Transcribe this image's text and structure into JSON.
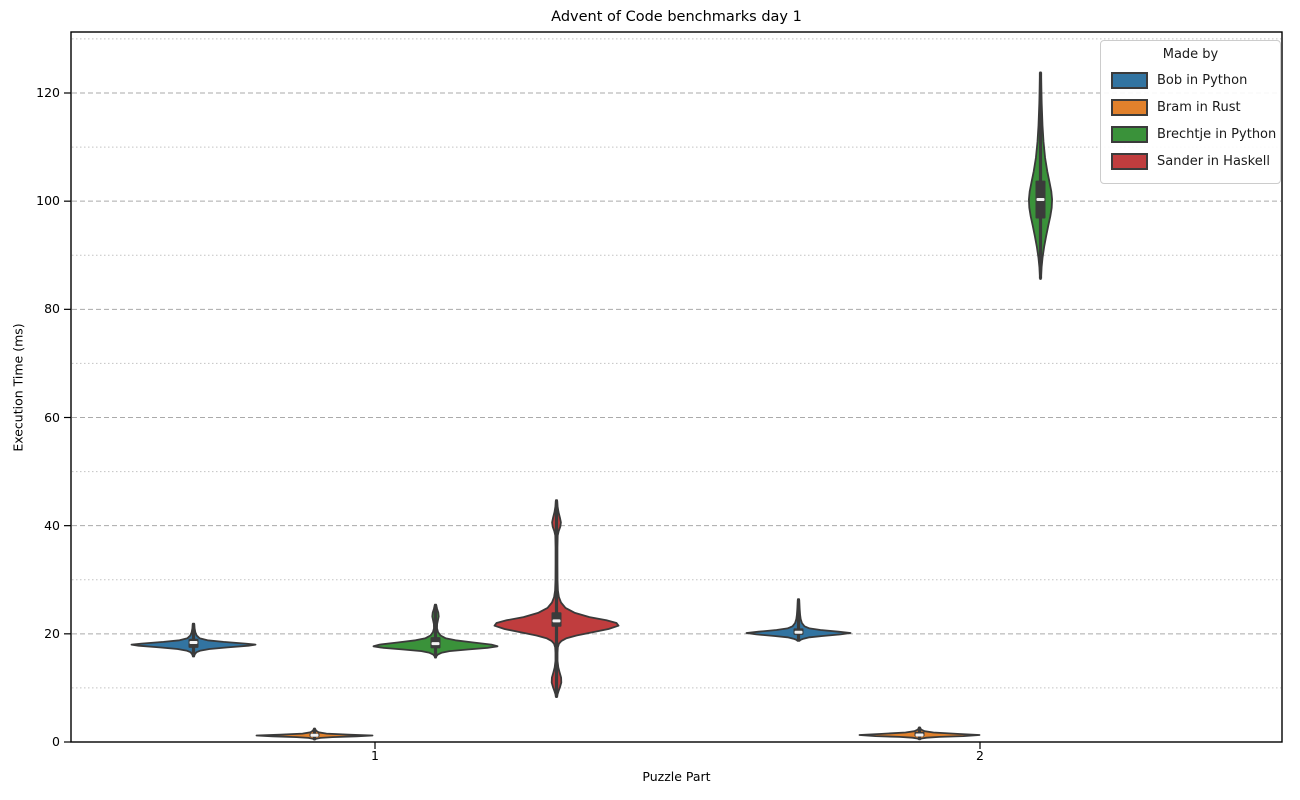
{
  "title": "Advent of Code benchmarks day 1",
  "x_axis": {
    "label": "Puzzle Part",
    "ticks": [
      "1",
      "2"
    ]
  },
  "y_axis": {
    "label": "Execution Time (ms)",
    "ticks": [
      0,
      20,
      40,
      60,
      80,
      100,
      120
    ],
    "minor_gridlines": [
      10,
      30,
      50,
      70,
      90,
      110,
      130
    ]
  },
  "legend": {
    "title": "Made by",
    "entries": [
      {
        "label": "Bob in Python",
        "color": "#3274a1"
      },
      {
        "label": "Bram in Rust",
        "color": "#e1812c"
      },
      {
        "label": "Brechtje in Python",
        "color": "#3a923a"
      },
      {
        "label": "Sander in Haskell",
        "color": "#c03d3e"
      }
    ]
  },
  "style_colors": {
    "violin_edge": "#3a3a3a",
    "inner_box": "#3b3b3b",
    "median_mark": "#f2f2f2",
    "grid_major": "#aaaaaa",
    "grid_minor": "#c3c3c3",
    "spine": "#000000"
  },
  "chart_data": {
    "type": "violin",
    "title": "Advent of Code benchmarks day 1",
    "xlabel": "Puzzle Part",
    "ylabel": "Execution Time (ms)",
    "ylim": [
      0,
      131
    ],
    "categories": [
      "1",
      "2"
    ],
    "hue_title": "Made by",
    "series_order": [
      "Bob in Python",
      "Bram in Rust",
      "Brechtje in Python",
      "Sander in Haskell"
    ],
    "summary": [
      {
        "maker": "Bob in Python",
        "part": "1",
        "median_ms": 18.4
      },
      {
        "maker": "Bram in Rust",
        "part": "1",
        "median_ms": 1.25
      },
      {
        "maker": "Brechtje in Python",
        "part": "1",
        "median_ms": 18.2
      },
      {
        "maker": "Sander in Haskell",
        "part": "1",
        "median_ms": 22.4
      },
      {
        "maker": "Bob in Python",
        "part": "2",
        "median_ms": 20.3
      },
      {
        "maker": "Bram in Rust",
        "part": "2",
        "median_ms": 1.3
      },
      {
        "maker": "Brechtje in Python",
        "part": "2",
        "median_ms": 100.3
      }
    ],
    "violins": [
      {
        "maker": "Bob in Python",
        "part": 1,
        "maker_index": 0,
        "color": "#3274a1",
        "stats": {
          "min": 16.2,
          "q1": 17.4,
          "median": 18.4,
          "q3": 19.1,
          "max": 21.8
        },
        "profile": [
          [
            21.9,
            0.7
          ],
          [
            21.0,
            1.1
          ],
          [
            20.3,
            1.8
          ],
          [
            19.7,
            3.2
          ],
          [
            19.2,
            6
          ],
          [
            18.8,
            14
          ],
          [
            18.5,
            30
          ],
          [
            18.2,
            52
          ],
          [
            18.0,
            62
          ],
          [
            17.8,
            55
          ],
          [
            17.5,
            34
          ],
          [
            17.2,
            16
          ],
          [
            16.9,
            7
          ],
          [
            16.6,
            3
          ],
          [
            16.2,
            1.2
          ],
          [
            15.8,
            0.6
          ]
        ]
      },
      {
        "maker": "Bram in Rust",
        "part": 1,
        "maker_index": 1,
        "color": "#e1812c",
        "stats": {
          "min": 0.5,
          "q1": 0.95,
          "median": 1.25,
          "q3": 1.6,
          "max": 2.4
        },
        "profile": [
          [
            2.5,
            0.5
          ],
          [
            2.1,
            1.5
          ],
          [
            1.8,
            4
          ],
          [
            1.55,
            12
          ],
          [
            1.35,
            34
          ],
          [
            1.2,
            58
          ],
          [
            1.05,
            42
          ],
          [
            0.9,
            18
          ],
          [
            0.75,
            6
          ],
          [
            0.6,
            1.5
          ],
          [
            0.45,
            0.5
          ]
        ]
      },
      {
        "maker": "Brechtje in Python",
        "part": 1,
        "maker_index": 2,
        "color": "#3a923a",
        "stats": {
          "min": 15.8,
          "q1": 17.3,
          "median": 18.2,
          "q3": 19.4,
          "max": 25.3
        },
        "profile": [
          [
            25.4,
            0.6
          ],
          [
            24.6,
            1.6
          ],
          [
            23.9,
            2.8
          ],
          [
            23.2,
            3.2
          ],
          [
            22.5,
            2.4
          ],
          [
            21.8,
            1.6
          ],
          [
            21.0,
            1.5
          ],
          [
            20.3,
            2.6
          ],
          [
            19.7,
            5
          ],
          [
            19.2,
            10
          ],
          [
            18.8,
            20
          ],
          [
            18.4,
            38
          ],
          [
            18.0,
            56
          ],
          [
            17.7,
            62
          ],
          [
            17.4,
            52
          ],
          [
            17.1,
            32
          ],
          [
            16.8,
            14
          ],
          [
            16.5,
            6
          ],
          [
            16.2,
            2.5
          ],
          [
            15.9,
            1.0
          ],
          [
            15.6,
            0.5
          ]
        ]
      },
      {
        "maker": "Sander in Haskell",
        "part": 1,
        "maker_index": 3,
        "color": "#c03d3e",
        "stats": {
          "min": 8.3,
          "q1": 21.3,
          "median": 22.4,
          "q3": 24.0,
          "max": 44.6
        },
        "profile": [
          [
            44.7,
            0.6
          ],
          [
            43.5,
            1.1
          ],
          [
            42.5,
            2.0
          ],
          [
            41.5,
            3.4
          ],
          [
            40.6,
            4.4
          ],
          [
            39.8,
            3.8
          ],
          [
            39.0,
            2.2
          ],
          [
            38.2,
            1.2
          ],
          [
            36.0,
            0.9
          ],
          [
            33.0,
            0.9
          ],
          [
            30.0,
            1.0
          ],
          [
            28.0,
            1.4
          ],
          [
            26.8,
            2.4
          ],
          [
            25.8,
            4.5
          ],
          [
            24.8,
            9
          ],
          [
            23.9,
            18
          ],
          [
            23.1,
            33
          ],
          [
            22.5,
            50
          ],
          [
            22.0,
            60
          ],
          [
            21.5,
            62
          ],
          [
            20.9,
            52
          ],
          [
            20.3,
            36
          ],
          [
            19.7,
            20
          ],
          [
            19.2,
            10
          ],
          [
            18.7,
            5
          ],
          [
            18.2,
            2.5
          ],
          [
            17.5,
            1.3
          ],
          [
            16.5,
            1.0
          ],
          [
            15.0,
            1.0
          ],
          [
            13.8,
            1.8
          ],
          [
            12.8,
            3.2
          ],
          [
            11.9,
            4.6
          ],
          [
            11.0,
            4.8
          ],
          [
            10.2,
            3.6
          ],
          [
            9.4,
            2.0
          ],
          [
            8.8,
            1.0
          ],
          [
            8.3,
            0.5
          ]
        ]
      },
      {
        "maker": "Bob in Python",
        "part": 2,
        "maker_index": 0,
        "color": "#3274a1",
        "stats": {
          "min": 18.8,
          "q1": 19.8,
          "median": 20.3,
          "q3": 21.0,
          "max": 26.3
        },
        "profile": [
          [
            26.4,
            0.6
          ],
          [
            25.5,
            0.9
          ],
          [
            24.5,
            1.2
          ],
          [
            23.5,
            1.6
          ],
          [
            22.7,
            2.2
          ],
          [
            22.0,
            3.4
          ],
          [
            21.4,
            6
          ],
          [
            21.0,
            11
          ],
          [
            20.7,
            22
          ],
          [
            20.4,
            40
          ],
          [
            20.15,
            52
          ],
          [
            19.9,
            42
          ],
          [
            19.6,
            24
          ],
          [
            19.35,
            11
          ],
          [
            19.1,
            5
          ],
          [
            18.9,
            2.2
          ],
          [
            18.7,
            0.8
          ]
        ]
      },
      {
        "maker": "Bram in Rust",
        "part": 2,
        "maker_index": 1,
        "color": "#e1812c",
        "stats": {
          "min": 0.5,
          "q1": 1.0,
          "median": 1.3,
          "q3": 1.9,
          "max": 2.7
        },
        "profile": [
          [
            2.7,
            0.5
          ],
          [
            2.3,
            1.6
          ],
          [
            2.0,
            5
          ],
          [
            1.75,
            14
          ],
          [
            1.5,
            38
          ],
          [
            1.3,
            60
          ],
          [
            1.1,
            44
          ],
          [
            0.95,
            20
          ],
          [
            0.8,
            7
          ],
          [
            0.65,
            2
          ],
          [
            0.5,
            0.5
          ]
        ]
      },
      {
        "maker": "Brechtje in Python",
        "part": 2,
        "maker_index": 2,
        "color": "#3a923a",
        "stats": {
          "min": 85.7,
          "q1": 96.8,
          "median": 100.3,
          "q3": 103.8,
          "max": 123.8
        },
        "profile": [
          [
            123.8,
            0.5
          ],
          [
            121,
            0.8
          ],
          [
            118,
            1.2
          ],
          [
            114,
            2.0
          ],
          [
            111,
            3.0
          ],
          [
            108,
            4.6
          ],
          [
            105.5,
            6.8
          ],
          [
            103.5,
            9.0
          ],
          [
            101.8,
            10.8
          ],
          [
            100.3,
            11.6
          ],
          [
            98.8,
            11.2
          ],
          [
            97.2,
            9.8
          ],
          [
            95.5,
            7.8
          ],
          [
            93.5,
            5.6
          ],
          [
            91.5,
            3.6
          ],
          [
            89.5,
            2.0
          ],
          [
            87.8,
            1.1
          ],
          [
            86.3,
            0.6
          ],
          [
            85.6,
            0.4
          ]
        ]
      }
    ]
  }
}
